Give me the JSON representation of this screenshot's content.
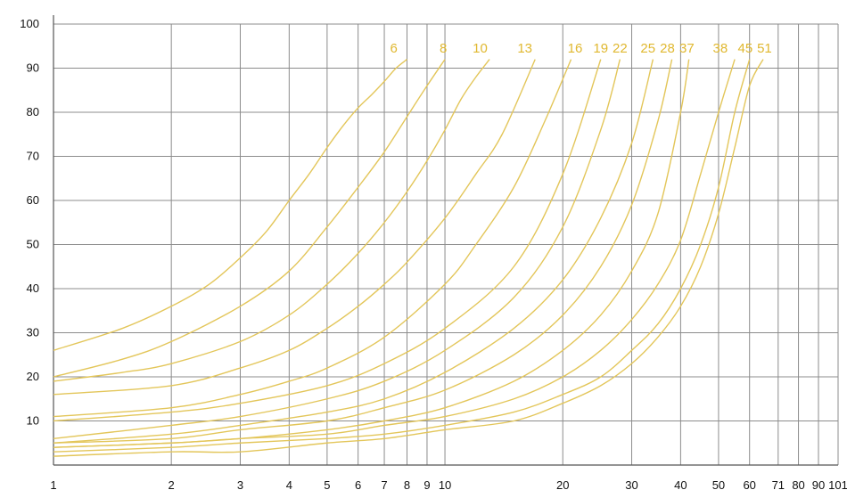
{
  "colors": {
    "curve": "#e3c65a",
    "curve_label": "#e0b830",
    "grid": "#8c8c8c",
    "text": "#111111"
  },
  "chart_data": {
    "type": "line",
    "title": "",
    "xlabel": "",
    "ylabel": "",
    "x_scale": "log",
    "xlim": [
      1,
      101
    ],
    "ylim": [
      0,
      100
    ],
    "grid": true,
    "legend": "none",
    "x_ticks": [
      {
        "value": 1,
        "label": "1"
      },
      {
        "value": 2,
        "label": "2"
      },
      {
        "value": 3,
        "label": "3"
      },
      {
        "value": 4,
        "label": "4"
      },
      {
        "value": 5,
        "label": "5"
      },
      {
        "value": 6,
        "label": "6"
      },
      {
        "value": 7,
        "label": "7"
      },
      {
        "value": 8,
        "label": "8"
      },
      {
        "value": 9,
        "label": "9"
      },
      {
        "value": 10,
        "label": "10"
      },
      {
        "value": 20,
        "label": "20"
      },
      {
        "value": 30,
        "label": "30"
      },
      {
        "value": 40,
        "label": "40"
      },
      {
        "value": 50,
        "label": "50"
      },
      {
        "value": 60,
        "label": "60"
      },
      {
        "value": 71,
        "label": "71"
      },
      {
        "value": 80,
        "label": "80"
      },
      {
        "value": 90,
        "label": "90"
      },
      {
        "value": 101,
        "label": "101"
      }
    ],
    "y_ticks": [
      {
        "value": 10,
        "label": "10"
      },
      {
        "value": 20,
        "label": "20"
      },
      {
        "value": 30,
        "label": "30"
      },
      {
        "value": 40,
        "label": "40"
      },
      {
        "value": 50,
        "label": "50"
      },
      {
        "value": 60,
        "label": "60"
      },
      {
        "value": 70,
        "label": "70"
      },
      {
        "value": 80,
        "label": "80"
      },
      {
        "value": 90,
        "label": "90"
      },
      {
        "value": 100,
        "label": "100"
      }
    ],
    "series": [
      {
        "name": "6",
        "x": [
          1,
          1.5,
          2,
          2.5,
          3,
          3.5,
          4,
          4.5,
          5,
          5.5,
          6,
          6.5,
          7,
          7.5,
          8
        ],
        "y": [
          26,
          31,
          36,
          41,
          47,
          53,
          60,
          66,
          72,
          77,
          81,
          84,
          87,
          90,
          92
        ]
      },
      {
        "name": "8",
        "x": [
          1,
          1.5,
          2,
          3,
          4,
          5,
          6,
          7,
          8,
          9,
          10
        ],
        "y": [
          20,
          24,
          28,
          36,
          44,
          54,
          63,
          71,
          79,
          86,
          92
        ]
      },
      {
        "name": "10",
        "x": [
          1,
          1.5,
          2,
          3,
          4,
          5,
          6,
          7,
          8,
          9,
          10,
          11,
          12,
          13
        ],
        "y": [
          19,
          21,
          23,
          28,
          34,
          41,
          48,
          55,
          62,
          69,
          76,
          83,
          88,
          92
        ]
      },
      {
        "name": "13",
        "x": [
          1,
          2,
          3,
          4,
          5,
          6,
          7,
          8,
          10,
          12,
          14,
          17
        ],
        "y": [
          16,
          18,
          22,
          26,
          31,
          36,
          41,
          46,
          56,
          66,
          75,
          92
        ]
      },
      {
        "name": "16",
        "x": [
          1,
          2,
          3,
          4,
          5,
          7,
          10,
          12,
          15,
          18,
          21
        ],
        "y": [
          11,
          13,
          16,
          19,
          22,
          29,
          41,
          50,
          63,
          78,
          92
        ]
      },
      {
        "name": "19",
        "x": [
          1,
          2,
          3,
          5,
          7,
          10,
          15,
          20,
          25
        ],
        "y": [
          10,
          12,
          14,
          18,
          23,
          31,
          45,
          66,
          92
        ]
      },
      {
        "name": "22",
        "x": [
          1,
          2,
          3,
          5,
          7,
          10,
          15,
          20,
          25,
          28
        ],
        "y": [
          6,
          9,
          11,
          15,
          19,
          26,
          38,
          54,
          76,
          92
        ]
      },
      {
        "name": "25",
        "x": [
          1,
          2,
          3,
          5,
          7,
          10,
          15,
          20,
          25,
          30,
          34
        ],
        "y": [
          5,
          7,
          9,
          12,
          15,
          21,
          31,
          42,
          56,
          73,
          92
        ]
      },
      {
        "name": "28",
        "x": [
          1,
          2,
          3,
          5,
          7,
          10,
          15,
          20,
          25,
          30,
          35,
          38
        ],
        "y": [
          5,
          6,
          8,
          10,
          13,
          17,
          25,
          34,
          45,
          59,
          78,
          92
        ]
      },
      {
        "name": "37",
        "x": [
          1,
          2,
          3,
          5,
          7,
          10,
          15,
          20,
          25,
          30,
          35,
          40,
          42
        ],
        "y": [
          4,
          5,
          6,
          8,
          10,
          13,
          19,
          26,
          34,
          44,
          57,
          80,
          92
        ]
      },
      {
        "name": "38",
        "x": [
          1,
          2,
          3,
          5,
          7,
          10,
          15,
          20,
          25,
          30,
          35,
          40,
          45,
          50,
          55
        ],
        "y": [
          4,
          5,
          6,
          7,
          9,
          11,
          15,
          20,
          26,
          33,
          41,
          51,
          66,
          80,
          92
        ]
      },
      {
        "name": "45",
        "x": [
          1,
          2,
          3,
          5,
          7,
          10,
          15,
          20,
          25,
          30,
          35,
          40,
          45,
          50,
          55,
          60
        ],
        "y": [
          3,
          4,
          5,
          6,
          7,
          9,
          12,
          16,
          20,
          26,
          32,
          40,
          50,
          63,
          80,
          92
        ]
      },
      {
        "name": "51",
        "x": [
          1,
          2,
          3,
          5,
          7,
          10,
          15,
          20,
          25,
          30,
          35,
          40,
          45,
          50,
          55,
          60,
          65
        ],
        "y": [
          2,
          3,
          3,
          5,
          6,
          8,
          10,
          14,
          18,
          23,
          29,
          36,
          45,
          57,
          72,
          86,
          92
        ]
      }
    ],
    "series_label_positions": [
      {
        "name": "6",
        "x": 7.4,
        "y": 93.5
      },
      {
        "name": "8",
        "x": 9.9,
        "y": 93.5
      },
      {
        "name": "10",
        "x": 12.3,
        "y": 93.5
      },
      {
        "name": "13",
        "x": 16.0,
        "y": 93.5
      },
      {
        "name": "16",
        "x": 21.5,
        "y": 93.5
      },
      {
        "name": "19",
        "x": 25.0,
        "y": 93.5
      },
      {
        "name": "22",
        "x": 28.0,
        "y": 93.5
      },
      {
        "name": "25",
        "x": 33.0,
        "y": 93.5
      },
      {
        "name": "28",
        "x": 37.0,
        "y": 93.5
      },
      {
        "name": "37",
        "x": 41.5,
        "y": 93.5
      },
      {
        "name": "38",
        "x": 50.5,
        "y": 93.5
      },
      {
        "name": "45",
        "x": 58.5,
        "y": 93.5
      },
      {
        "name": "51",
        "x": 65.5,
        "y": 93.5
      }
    ]
  }
}
